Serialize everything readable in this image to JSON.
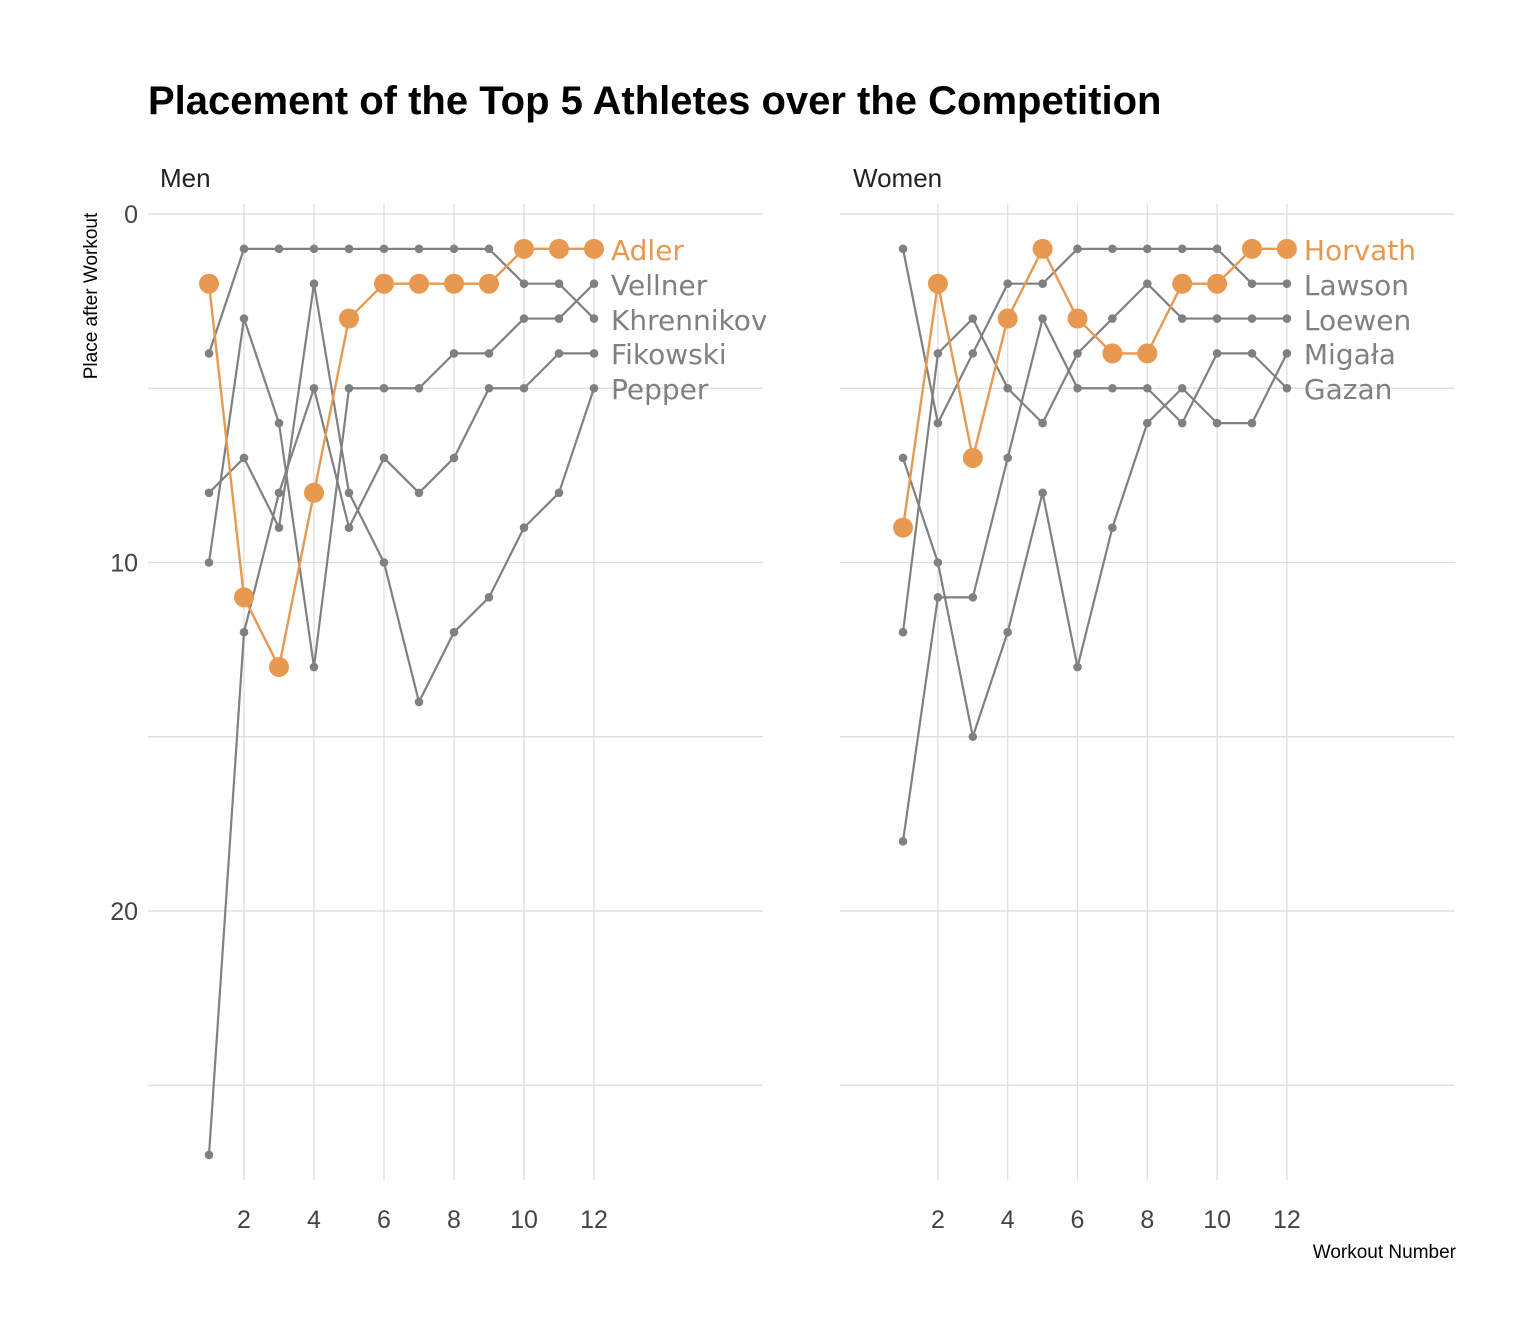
{
  "chart_data": {
    "type": "line",
    "title": "Placement of the Top 5 Athletes over the Competition",
    "xlabel": "Workout Number",
    "ylabel": "Place after Workout",
    "x": [
      1,
      2,
      3,
      4,
      5,
      6,
      7,
      8,
      9,
      10,
      11,
      12
    ],
    "x_ticks": [
      2,
      4,
      6,
      8,
      10,
      12
    ],
    "y_ticks": [
      0,
      10,
      20
    ],
    "y_reversed": true,
    "highlight_color": "#e8994f",
    "other_color": "#808080",
    "panels": [
      {
        "name": "Men",
        "series": [
          {
            "name": "Adler",
            "highlight": true,
            "values": [
              2,
              11,
              13,
              8,
              3,
              2,
              2,
              2,
              2,
              1,
              1,
              1
            ]
          },
          {
            "name": "Vellner",
            "highlight": false,
            "values": [
              4,
              1,
              1,
              1,
              1,
              1,
              1,
              1,
              1,
              2,
              2,
              3
            ]
          },
          {
            "name": "Khrennikov",
            "highlight": false,
            "values": [
              8,
              7,
              9,
              2,
              8,
              10,
              14,
              12,
              11,
              9,
              8,
              5
            ]
          },
          {
            "name": "Fikowski",
            "highlight": false,
            "values": [
              10,
              3,
              6,
              13,
              5,
              5,
              5,
              4,
              4,
              3,
              3,
              2
            ]
          },
          {
            "name": "Pepper",
            "highlight": false,
            "values": [
              27,
              12,
              8,
              5,
              9,
              7,
              8,
              7,
              5,
              5,
              4,
              4
            ]
          }
        ]
      },
      {
        "name": "Women",
        "series": [
          {
            "name": "Horvath",
            "highlight": true,
            "values": [
              9,
              2,
              7,
              3,
              1,
              3,
              4,
              4,
              2,
              2,
              1,
              1
            ]
          },
          {
            "name": "Lawson",
            "highlight": false,
            "values": [
              1,
              6,
              4,
              2,
              2,
              1,
              1,
              1,
              1,
              1,
              2,
              2
            ]
          },
          {
            "name": "Loewen",
            "highlight": false,
            "values": [
              12,
              4,
              3,
              5,
              6,
              4,
              3,
              2,
              3,
              3,
              3,
              3
            ]
          },
          {
            "name": "Migała",
            "highlight": false,
            "values": [
              7,
              10,
              15,
              12,
              8,
              13,
              9,
              6,
              5,
              6,
              6,
              4
            ]
          },
          {
            "name": "Gazan",
            "highlight": false,
            "values": [
              18,
              11,
              11,
              7,
              3,
              5,
              5,
              5,
              6,
              4,
              4,
              5
            ]
          }
        ]
      }
    ]
  }
}
